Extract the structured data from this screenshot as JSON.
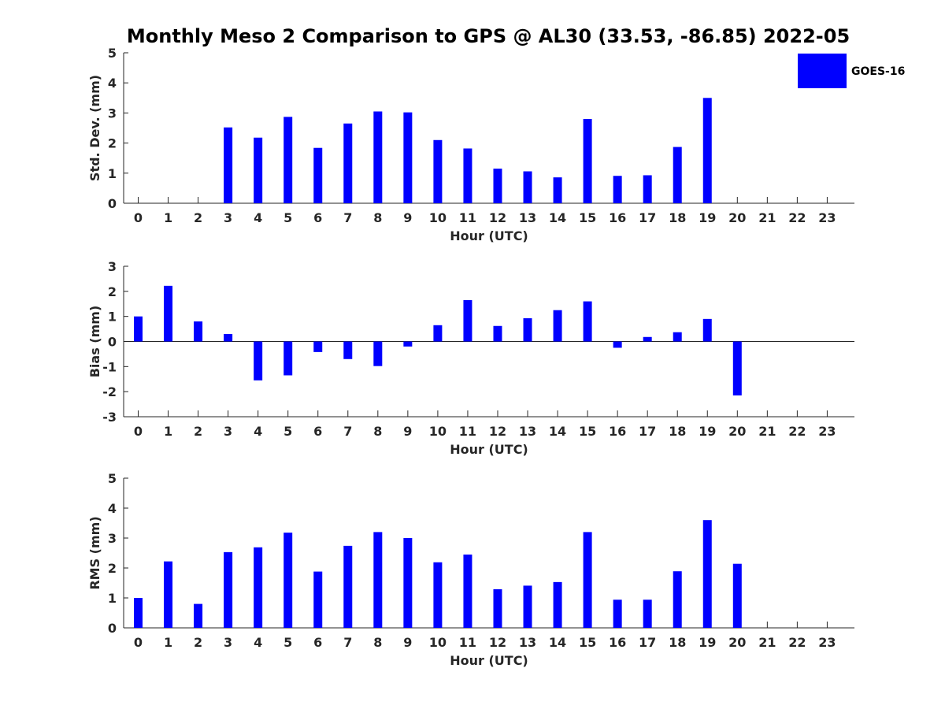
{
  "title": "Monthly Meso 2 Comparison to GPS @ AL30 (33.53, -86.85) 2022-05",
  "legend": {
    "label": "GOES-16",
    "color": "#0000ff"
  },
  "chart_data": [
    {
      "type": "bar",
      "name": "std",
      "series_name": "GOES-16",
      "color": "#0000ff",
      "xlabel": "Hour (UTC)",
      "ylabel": "Std. Dev. (mm)",
      "ylim": [
        0,
        5
      ],
      "yticks": [
        0,
        1,
        2,
        3,
        4,
        5
      ],
      "categories": [
        "0",
        "1",
        "2",
        "3",
        "4",
        "5",
        "6",
        "7",
        "8",
        "9",
        "10",
        "11",
        "12",
        "13",
        "14",
        "15",
        "16",
        "17",
        "18",
        "19",
        "20",
        "21",
        "22",
        "23"
      ],
      "values": [
        null,
        null,
        null,
        2.52,
        2.18,
        2.87,
        1.84,
        2.65,
        3.05,
        3.02,
        2.1,
        1.82,
        1.15,
        1.06,
        0.86,
        2.8,
        0.91,
        0.93,
        1.87,
        3.5,
        null,
        null,
        null,
        null
      ]
    },
    {
      "type": "bar",
      "name": "bias",
      "series_name": "GOES-16",
      "color": "#0000ff",
      "xlabel": "Hour (UTC)",
      "ylabel": "Bias (mm)",
      "ylim": [
        -3,
        3
      ],
      "yticks": [
        -3,
        -2,
        -1,
        0,
        1,
        2,
        3
      ],
      "categories": [
        "0",
        "1",
        "2",
        "3",
        "4",
        "5",
        "6",
        "7",
        "8",
        "9",
        "10",
        "11",
        "12",
        "13",
        "14",
        "15",
        "16",
        "17",
        "18",
        "19",
        "20",
        "21",
        "22",
        "23"
      ],
      "values": [
        1.0,
        2.22,
        0.8,
        0.3,
        -1.55,
        -1.35,
        -0.42,
        -0.7,
        -0.98,
        -0.2,
        0.65,
        1.65,
        0.62,
        0.93,
        1.25,
        1.6,
        -0.25,
        0.18,
        0.37,
        0.9,
        -2.15,
        null,
        null,
        null
      ]
    },
    {
      "type": "bar",
      "name": "rms",
      "series_name": "GOES-16",
      "color": "#0000ff",
      "xlabel": "Hour (UTC)",
      "ylabel": "RMS (mm)",
      "ylim": [
        0,
        5
      ],
      "yticks": [
        0,
        1,
        2,
        3,
        4,
        5
      ],
      "categories": [
        "0",
        "1",
        "2",
        "3",
        "4",
        "5",
        "6",
        "7",
        "8",
        "9",
        "10",
        "11",
        "12",
        "13",
        "14",
        "15",
        "16",
        "17",
        "18",
        "19",
        "20",
        "21",
        "22",
        "23"
      ],
      "values": [
        1.0,
        2.22,
        0.8,
        2.53,
        2.69,
        3.18,
        1.88,
        2.74,
        3.2,
        3.0,
        2.19,
        2.45,
        1.29,
        1.41,
        1.53,
        3.2,
        0.94,
        0.94,
        1.89,
        3.6,
        2.14,
        null,
        null,
        null
      ]
    }
  ]
}
